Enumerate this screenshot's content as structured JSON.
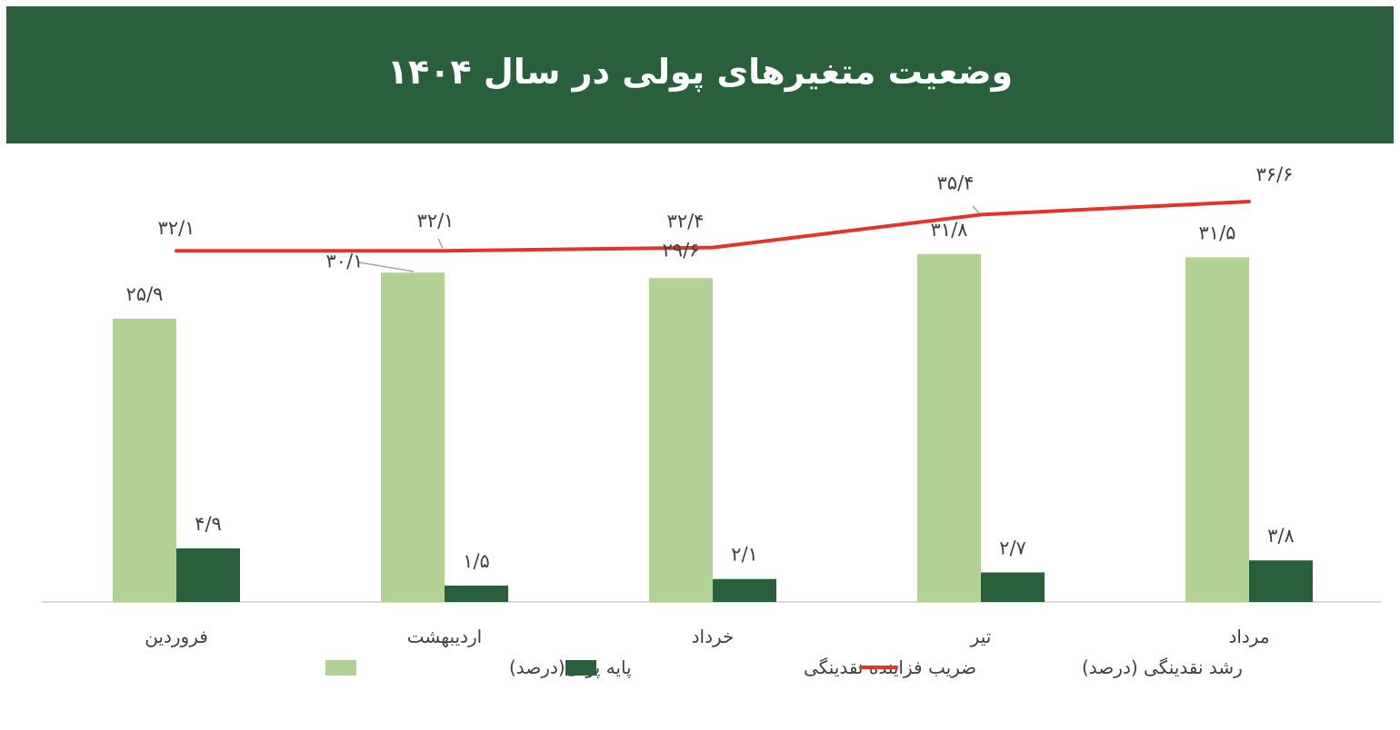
{
  "header": {
    "title": "وضعیت متغیرهای پولی در سال ۱۴۰۴"
  },
  "colors": {
    "header_bg": "#2a5f3b",
    "base_money": "#b2d195",
    "multiplier": "#2a5f3b",
    "liquidity_growth": "#e5332a",
    "axis": "#d9d9d9",
    "label_text": "#404040",
    "leader_line": "#a6a6a6"
  },
  "chart_data": {
    "type": "bar",
    "title": "وضعیت متغیرهای پولی در سال ۱۴۰۴",
    "xlabel": "",
    "ylabel": "",
    "ylim": [
      0,
      45
    ],
    "grid": false,
    "legend_position": "bottom",
    "categories": [
      "فروردین",
      "اردیبهشت",
      "خرداد",
      "تیر",
      "مرداد"
    ],
    "series": [
      {
        "name": "پایه پولی(درصد)",
        "type": "bar",
        "color": "#b2d195",
        "values": [
          25.9,
          30.1,
          29.6,
          31.8,
          31.5
        ],
        "labels": [
          "۲۵/۹",
          "۳۰/۱",
          "۲۹/۶",
          "۳۱/۸",
          "۳۱/۵"
        ]
      },
      {
        "name": "ضریب فزاینده نقدینگی",
        "type": "bar",
        "color": "#2a5f3b",
        "values": [
          4.9,
          1.5,
          2.1,
          2.7,
          3.8
        ],
        "labels": [
          "۴/۹",
          "۱/۵",
          "۲/۱",
          "۲/۷",
          "۳/۸"
        ]
      },
      {
        "name": "رشد نقدینگی (درصد)",
        "type": "line",
        "color": "#e5332a",
        "values": [
          32.1,
          32.1,
          32.4,
          35.4,
          36.6
        ],
        "labels": [
          "۳۲/۱",
          "۳۲/۱",
          "۳۲/۴",
          "۳۵/۴",
          "۳۶/۶"
        ]
      }
    ]
  },
  "legend": [
    {
      "label": "پایه پولی(درصد)",
      "marker": "square",
      "color": "#b2d195"
    },
    {
      "label": "ضریب فزاینده نقدینگی",
      "marker": "square",
      "color": "#2a5f3b"
    },
    {
      "label": "رشد نقدینگی (درصد)",
      "marker": "line",
      "color": "#e5332a"
    }
  ]
}
